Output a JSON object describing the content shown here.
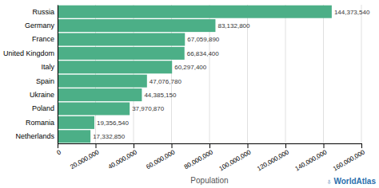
{
  "chart_data": {
    "type": "bar",
    "orientation": "horizontal",
    "categories": [
      "Russia",
      "Germany",
      "France",
      "United Kingdom",
      "Italy",
      "Spain",
      "Ukraine",
      "Poland",
      "Romania",
      "Netherlands"
    ],
    "values": [
      144373540,
      83132800,
      67059890,
      66834400,
      60297400,
      47076780,
      44385150,
      37970870,
      19356540,
      17332850
    ],
    "value_labels": [
      "144,373,540",
      "83,132,800",
      "67,059,890",
      "66,834,400",
      "60,297,400",
      "47,076,780",
      "44,385,150",
      "37,970,870",
      "19,356,540",
      "17,332,850"
    ],
    "data_labels": true,
    "color": "#4caf87",
    "xlabel": "Population",
    "xlim": [
      0,
      160000000
    ],
    "xticks": [
      0,
      {
        "value": 20000000,
        "label": "20,000,000"
      },
      {
        "value": 40000000,
        "label": "40,000,000"
      },
      {
        "value": 60000000,
        "label": "60,000,000"
      },
      {
        "value": 80000000,
        "label": "80,000,000"
      },
      {
        "value": 100000000,
        "label": "100,000,000"
      },
      {
        "value": 120000000,
        "label": "120,000,000"
      },
      {
        "value": 140000000,
        "label": "140,000,000"
      },
      {
        "value": 160000000,
        "label": "160,000,000"
      }
    ],
    "grid": true,
    "annotations": [
      {
        "text": "♁",
        "color": "#2a6fad"
      },
      {
        "text": "WorldAtlas",
        "color": "#2a6fad"
      }
    ]
  }
}
